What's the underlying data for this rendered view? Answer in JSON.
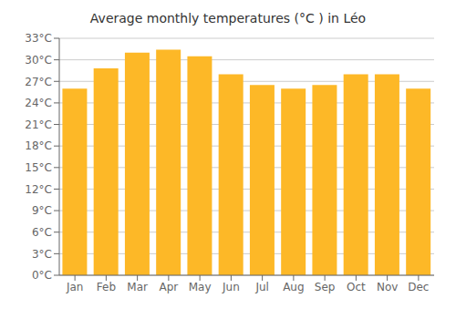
{
  "chart_data": {
    "type": "bar",
    "title": "Average monthly temperatures (°C ) in Léo",
    "categories": [
      "Jan",
      "Feb",
      "Mar",
      "Apr",
      "May",
      "Jun",
      "Jul",
      "Aug",
      "Sep",
      "Oct",
      "Nov",
      "Dec"
    ],
    "values": [
      26.0,
      28.8,
      31.0,
      31.4,
      30.5,
      28.0,
      26.5,
      26.0,
      26.5,
      28.0,
      28.0,
      26.0
    ],
    "color": "#FDB827",
    "ylim": [
      0,
      33
    ],
    "yticks": [
      {
        "value": 0,
        "label": "0°C"
      },
      {
        "value": 3,
        "label": "3°C"
      },
      {
        "value": 6,
        "label": "6°C"
      },
      {
        "value": 9,
        "label": "9°C"
      },
      {
        "value": 12,
        "label": "12°C"
      },
      {
        "value": 15,
        "label": "15°C"
      },
      {
        "value": 18,
        "label": "18°C"
      },
      {
        "value": 21,
        "label": "21°C"
      },
      {
        "value": 24,
        "label": "24°C"
      },
      {
        "value": 27,
        "label": "27°C"
      },
      {
        "value": 30,
        "label": "30°C"
      },
      {
        "value": 33,
        "label": "33°C"
      }
    ],
    "grid": true
  }
}
